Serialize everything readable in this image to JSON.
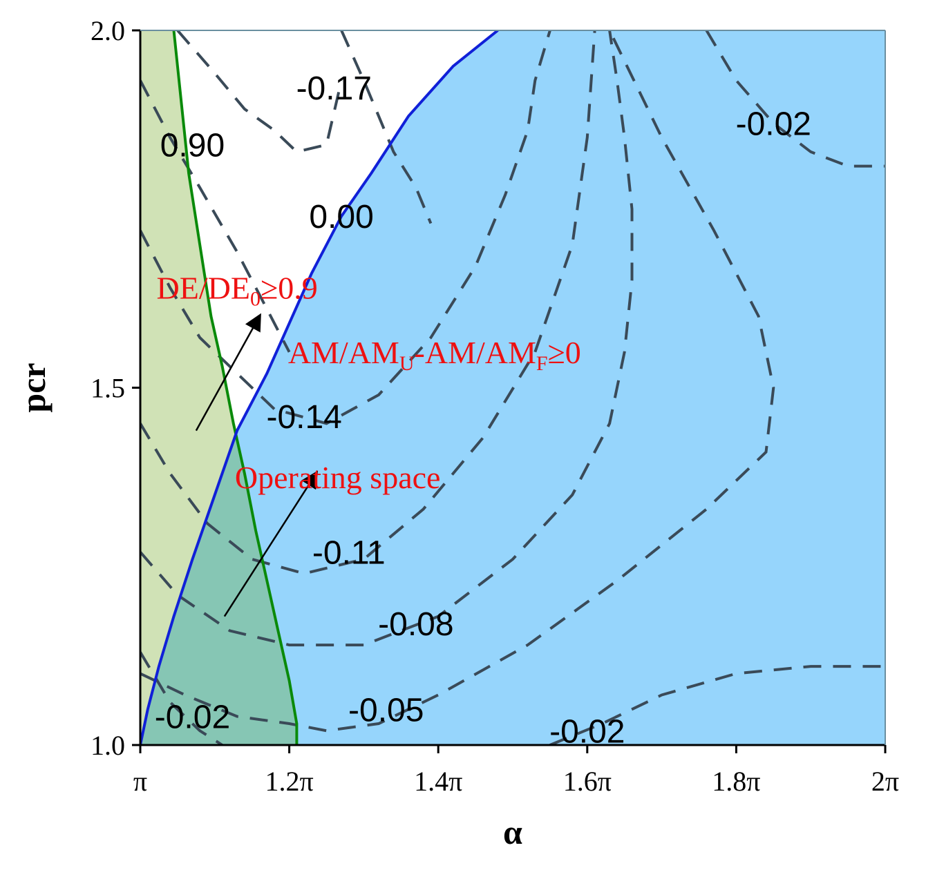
{
  "chart_data": {
    "type": "contour",
    "xlabel": "α",
    "ylabel": "pcr",
    "xlim": [
      1.0,
      2.0
    ],
    "ylim": [
      1.0,
      2.0
    ],
    "x_unit_note": "multiples of π",
    "x_ticks": [
      {
        "value": 1.0,
        "label": "π"
      },
      {
        "value": 1.2,
        "label": "1.2π"
      },
      {
        "value": 1.4,
        "label": "1.4π"
      },
      {
        "value": 1.6,
        "label": "1.6π"
      },
      {
        "value": 1.8,
        "label": "1.8π"
      },
      {
        "value": 2.0,
        "label": "2π"
      }
    ],
    "y_ticks": [
      {
        "value": 1.0,
        "label": "1.0"
      },
      {
        "value": 1.5,
        "label": "1.5"
      },
      {
        "value": 2.0,
        "label": "2.0"
      }
    ],
    "colors": {
      "am_region": "#96d5fc",
      "de_region": "#d0e2b6",
      "overlap_region": "#86c6b4",
      "de_boundary": "#0a8a0a",
      "am_boundary": "#1020d8",
      "contour": "#3a4a58",
      "annotation": "#ee1111"
    },
    "boundaries": [
      {
        "name": "DE/DE0 = 0.9",
        "x": [
          1.045,
          1.055,
          1.065,
          1.08,
          1.095,
          1.11,
          1.125,
          1.14,
          1.155,
          1.17,
          1.185,
          1.2,
          1.21,
          1.21
        ],
        "y": [
          2.0,
          1.9,
          1.8,
          1.7,
          1.6,
          1.53,
          1.45,
          1.38,
          1.3,
          1.23,
          1.16,
          1.09,
          1.03,
          1.0
        ]
      },
      {
        "name": "AM/AMU - AM/AMF = 0",
        "x": [
          1.0,
          1.01,
          1.025,
          1.045,
          1.07,
          1.1,
          1.13,
          1.17,
          1.2,
          1.23,
          1.27,
          1.31,
          1.36,
          1.42,
          1.48
        ],
        "y": [
          1.0,
          1.05,
          1.11,
          1.18,
          1.26,
          1.35,
          1.44,
          1.52,
          1.59,
          1.66,
          1.74,
          1.8,
          1.88,
          1.95,
          2.0
        ]
      }
    ],
    "contours": [
      {
        "label": "-0.17",
        "x": [
          1.27,
          1.3,
          1.32,
          1.34,
          1.37,
          1.39
        ],
        "y": [
          2.0,
          1.93,
          1.88,
          1.83,
          1.78,
          1.73
        ]
      },
      {
        "label": "-0.17",
        "x": [
          1.05,
          1.1,
          1.14,
          1.18,
          1.21,
          1.25,
          1.27
        ],
        "y": [
          2.0,
          1.94,
          1.89,
          1.86,
          1.83,
          1.84,
          1.93
        ]
      },
      {
        "label": "0.00",
        "x": [
          1.0,
          1.04,
          1.08,
          1.13,
          1.17,
          1.2
        ],
        "y": [
          1.93,
          1.85,
          1.78,
          1.69,
          1.61,
          1.55
        ]
      },
      {
        "label": "-0.14",
        "x": [
          1.0,
          1.04,
          1.08,
          1.13,
          1.18,
          1.25,
          1.32,
          1.39,
          1.45,
          1.49,
          1.52,
          1.53,
          1.55
        ],
        "y": [
          1.72,
          1.64,
          1.57,
          1.52,
          1.47,
          1.45,
          1.49,
          1.57,
          1.67,
          1.77,
          1.86,
          1.93,
          2.0
        ]
      },
      {
        "label": "-0.11",
        "x": [
          1.0,
          1.04,
          1.09,
          1.15,
          1.22,
          1.3,
          1.38,
          1.46,
          1.53,
          1.58,
          1.6,
          1.61
        ],
        "y": [
          1.45,
          1.38,
          1.31,
          1.26,
          1.24,
          1.26,
          1.33,
          1.43,
          1.55,
          1.7,
          1.85,
          2.0
        ]
      },
      {
        "label": "-0.08",
        "x": [
          1.0,
          1.05,
          1.12,
          1.2,
          1.3,
          1.4,
          1.5,
          1.58,
          1.63,
          1.65,
          1.66,
          1.66,
          1.65,
          1.64,
          1.63
        ],
        "y": [
          1.27,
          1.21,
          1.16,
          1.14,
          1.14,
          1.18,
          1.26,
          1.35,
          1.45,
          1.55,
          1.65,
          1.75,
          1.85,
          1.93,
          2.0
        ]
      },
      {
        "label": "-0.05",
        "x": [
          1.0,
          1.06,
          1.13,
          1.2,
          1.25,
          1.32,
          1.4,
          1.52,
          1.64,
          1.76,
          1.84,
          1.85,
          1.83,
          1.77,
          1.7,
          1.63
        ],
        "y": [
          1.1,
          1.07,
          1.04,
          1.03,
          1.02,
          1.03,
          1.07,
          1.14,
          1.23,
          1.33,
          1.41,
          1.5,
          1.6,
          1.72,
          1.85,
          2.0
        ]
      },
      {
        "label": "-0.02",
        "x": [
          1.0,
          1.04,
          1.08,
          1.11
        ],
        "y": [
          1.13,
          1.06,
          1.02,
          1.0
        ]
      },
      {
        "label": "-0.02",
        "x": [
          1.55,
          1.62,
          1.7,
          1.8,
          1.9,
          1.97,
          2.0
        ],
        "y": [
          1.0,
          1.03,
          1.07,
          1.1,
          1.11,
          1.11,
          1.11
        ]
      },
      {
        "label": "-0.02",
        "x": [
          1.76,
          1.8,
          1.85,
          1.9,
          1.95,
          2.0
        ],
        "y": [
          2.0,
          1.93,
          1.87,
          1.83,
          1.81,
          1.81
        ]
      }
    ],
    "contour_labels": [
      {
        "text": "0.90",
        "x": 1.07,
        "y": 1.84
      },
      {
        "text": "-0.17",
        "x": 1.26,
        "y": 1.92
      },
      {
        "text": "-0.02",
        "x": 1.85,
        "y": 1.87
      },
      {
        "text": "0.00",
        "x": 1.27,
        "y": 1.74
      },
      {
        "text": "-0.14",
        "x": 1.22,
        "y": 1.46
      },
      {
        "text": "-0.11",
        "x": 1.28,
        "y": 1.27
      },
      {
        "text": "-0.08",
        "x": 1.37,
        "y": 1.17
      },
      {
        "text": "-0.05",
        "x": 1.33,
        "y": 1.05
      },
      {
        "text": "-0.02",
        "x": 1.07,
        "y": 1.04
      },
      {
        "text": "-0.02",
        "x": 1.6,
        "y": 1.02
      }
    ],
    "annotations": [
      {
        "id": "de",
        "base": "DE/DE",
        "sub": "0",
        "tail": "≥0.9",
        "x": 1.13,
        "y": 1.64
      },
      {
        "id": "am",
        "parts": [
          {
            "t": "AM/AM",
            "sub": false
          },
          {
            "t": "U",
            "sub": true
          },
          {
            "t": "-AM/AM",
            "sub": false
          },
          {
            "t": "F",
            "sub": true
          },
          {
            "t": "≥0",
            "sub": false
          }
        ],
        "x": 1.395,
        "y": 1.55
      },
      {
        "id": "op",
        "text": "Operating space",
        "x": 1.265,
        "y": 1.375
      }
    ],
    "arrows": [
      {
        "x1": 1.075,
        "y1": 1.44,
        "x2": 1.16,
        "y2": 1.6
      },
      {
        "x1": 1.113,
        "y1": 1.18,
        "x2": 1.236,
        "y2": 1.38
      }
    ]
  }
}
